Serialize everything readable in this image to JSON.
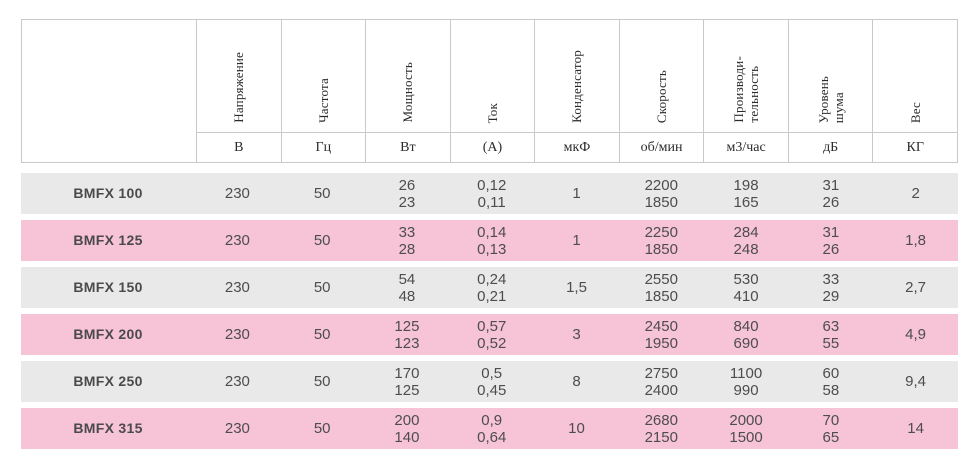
{
  "colors": {
    "row_gray": "#e9e9e9",
    "row_pink": "#f7c3d7",
    "border": "#c9c9c9"
  },
  "header": {
    "columns": [
      {
        "label": "Напряжение",
        "unit": "В"
      },
      {
        "label": "Частота",
        "unit": "Гц"
      },
      {
        "label": "Мощность",
        "unit": "Вт"
      },
      {
        "label": "Ток",
        "unit": "(А)"
      },
      {
        "label": "Конденсатор",
        "unit": "мкФ"
      },
      {
        "label": "Скорость",
        "unit": "об/мин"
      },
      {
        "label": "Производи-\nтельность",
        "unit": "м3/час"
      },
      {
        "label": "Уровень\nшума",
        "unit": "дБ"
      },
      {
        "label": "Вес",
        "unit": "КГ"
      }
    ]
  },
  "rows": [
    {
      "model": "BMFX 100",
      "values": [
        "230",
        "50",
        "26\n23",
        "0,12\n0,11",
        "1",
        "2200\n1850",
        "198\n165",
        "31\n26",
        "2"
      ]
    },
    {
      "model": "BMFX 125",
      "values": [
        "230",
        "50",
        "33\n28",
        "0,14\n0,13",
        "1",
        "2250\n1850",
        "284\n248",
        "31\n26",
        "1,8"
      ]
    },
    {
      "model": "BMFX 150",
      "values": [
        "230",
        "50",
        "54\n48",
        "0,24\n0,21",
        "1,5",
        "2550\n1850",
        "530\n410",
        "33\n29",
        "2,7"
      ]
    },
    {
      "model": "BMFX 200",
      "values": [
        "230",
        "50",
        "125\n123",
        "0,57\n0,52",
        "3",
        "2450\n1950",
        "840\n690",
        "63\n55",
        "4,9"
      ]
    },
    {
      "model": "BMFX 250",
      "values": [
        "230",
        "50",
        "170\n125",
        "0,5\n0,45",
        "8",
        "2750\n2400",
        "1100\n990",
        "60\n58",
        "9,4"
      ]
    },
    {
      "model": "BMFX 315",
      "values": [
        "230",
        "50",
        "200\n140",
        "0,9\n0,64",
        "10",
        "2680\n2150",
        "2000\n1500",
        "70\n65",
        "14"
      ]
    }
  ]
}
